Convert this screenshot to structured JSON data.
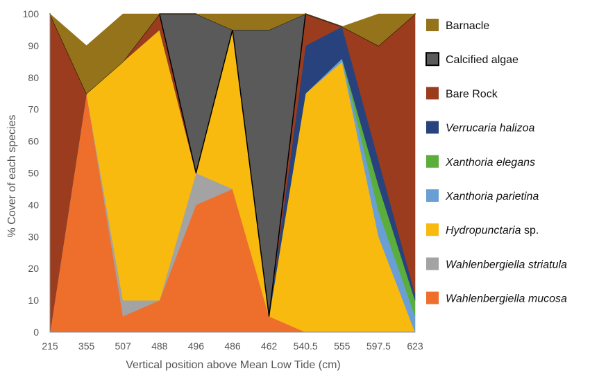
{
  "chart_data": {
    "type": "area",
    "stacked": true,
    "xlabel": "Vertical position above Mean Low Tide (cm)",
    "ylabel": "% Cover of each species",
    "ylim": [
      0,
      100
    ],
    "yticks": [
      0,
      10,
      20,
      30,
      40,
      50,
      60,
      70,
      80,
      90,
      100
    ],
    "categories": [
      "215",
      "355",
      "507",
      "488",
      "496",
      "486",
      "462",
      "540.5",
      "555",
      "597.5",
      "623"
    ],
    "grid": false,
    "legend_position": "right",
    "series": [
      {
        "name": "Wahlenbergiella mucosa",
        "italic": true,
        "suffix": "",
        "color": "#EE6E2B",
        "values": [
          0,
          75,
          5,
          10,
          40,
          45,
          5,
          0,
          0,
          0,
          0
        ]
      },
      {
        "name": "Wahlenbergiella striatula",
        "italic": true,
        "suffix": "",
        "color": "#A3A3A3",
        "values": [
          0,
          0,
          5,
          0,
          10,
          0,
          0,
          0,
          0,
          0,
          0
        ]
      },
      {
        "name": "Hydropunctaria",
        "italic": true,
        "suffix": " sp.",
        "color": "#F8BA0F",
        "values": [
          0,
          0,
          75,
          85,
          0,
          50,
          0,
          75,
          85,
          30,
          0
        ]
      },
      {
        "name": "Xanthoria parietina",
        "italic": true,
        "suffix": "",
        "color": "#6A9FD6",
        "values": [
          0,
          0,
          0,
          0,
          0,
          0,
          0,
          0,
          1,
          8,
          5
        ]
      },
      {
        "name": "Xanthoria elegans",
        "italic": true,
        "suffix": "",
        "color": "#5BAE3B",
        "values": [
          0,
          0,
          0,
          0,
          0,
          0,
          0,
          0,
          0,
          8,
          5
        ]
      },
      {
        "name": "Verrucaria halizoa",
        "italic": true,
        "suffix": "",
        "color": "#27427D",
        "values": [
          0,
          0,
          0,
          0,
          0,
          0,
          0,
          15,
          10,
          8,
          2
        ]
      },
      {
        "name": "Bare Rock",
        "italic": false,
        "suffix": "",
        "color": "#9C3C1E",
        "values": [
          100,
          0,
          0,
          5,
          0,
          0,
          0,
          10,
          0,
          36,
          88
        ]
      },
      {
        "name": "Calcified algae",
        "italic": false,
        "suffix": "",
        "color": "#5A5A5A",
        "values": [
          0,
          0,
          0,
          0,
          50,
          0,
          90,
          0,
          0,
          0,
          0
        ]
      },
      {
        "name": "Barnacle",
        "italic": false,
        "suffix": "",
        "color": "#94731A",
        "values": [
          0,
          15,
          15,
          0,
          0,
          5,
          5,
          0,
          0,
          10,
          0
        ]
      }
    ]
  }
}
